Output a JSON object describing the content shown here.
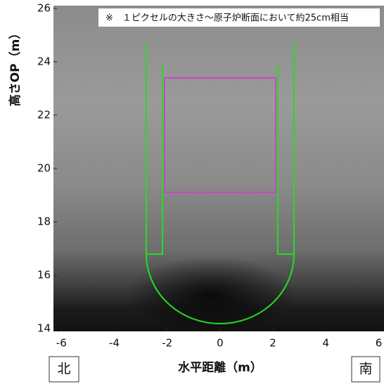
{
  "chart_data": {
    "type": "heatmap",
    "annotation": "※　１ピクセルの大きさ～原子炉断面において約25cm相当",
    "x_label": "水平距離（m）",
    "y_label": "高さOP（m）",
    "left_marker": "北",
    "right_marker": "南",
    "xlim": [
      -6.3,
      6.2
    ],
    "xticks": [
      -6,
      -4,
      -2,
      0,
      2,
      4,
      6
    ],
    "ylim": [
      13.9,
      26.1
    ],
    "yticks": [
      14,
      16,
      18,
      20,
      22,
      24,
      26
    ],
    "outline_color": "#22dd22",
    "roi_color": "#cc44cc"
  }
}
